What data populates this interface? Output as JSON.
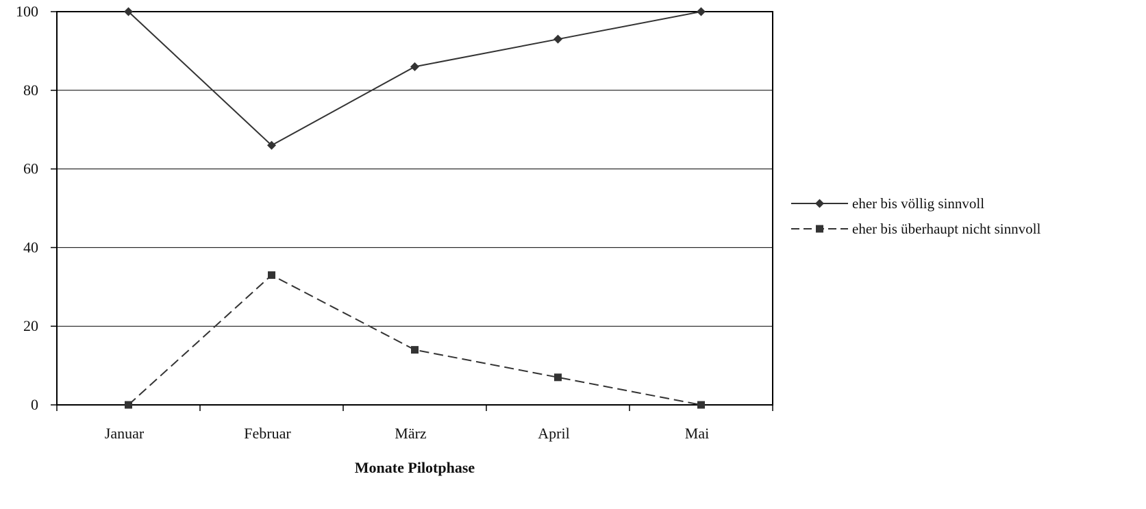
{
  "chart_data": {
    "type": "line",
    "title": "",
    "xlabel": "Monate Pilotphase",
    "ylabel": "",
    "categories": [
      "Januar",
      "Februar",
      "März",
      "April",
      "Mai"
    ],
    "ylim": [
      0,
      100
    ],
    "yticks": [
      0,
      20,
      40,
      60,
      80,
      100
    ],
    "grid": true,
    "legend_position": "right",
    "series": [
      {
        "name": "eher bis völlig sinnvoll",
        "values": [
          100,
          66,
          86,
          93,
          100
        ],
        "marker": "diamond",
        "line_style": "solid",
        "color": "#333333"
      },
      {
        "name": "eher bis überhaupt nicht sinnvoll",
        "values": [
          0,
          33,
          14,
          7,
          0
        ],
        "marker": "square",
        "line_style": "dashed",
        "color": "#333333"
      }
    ]
  }
}
